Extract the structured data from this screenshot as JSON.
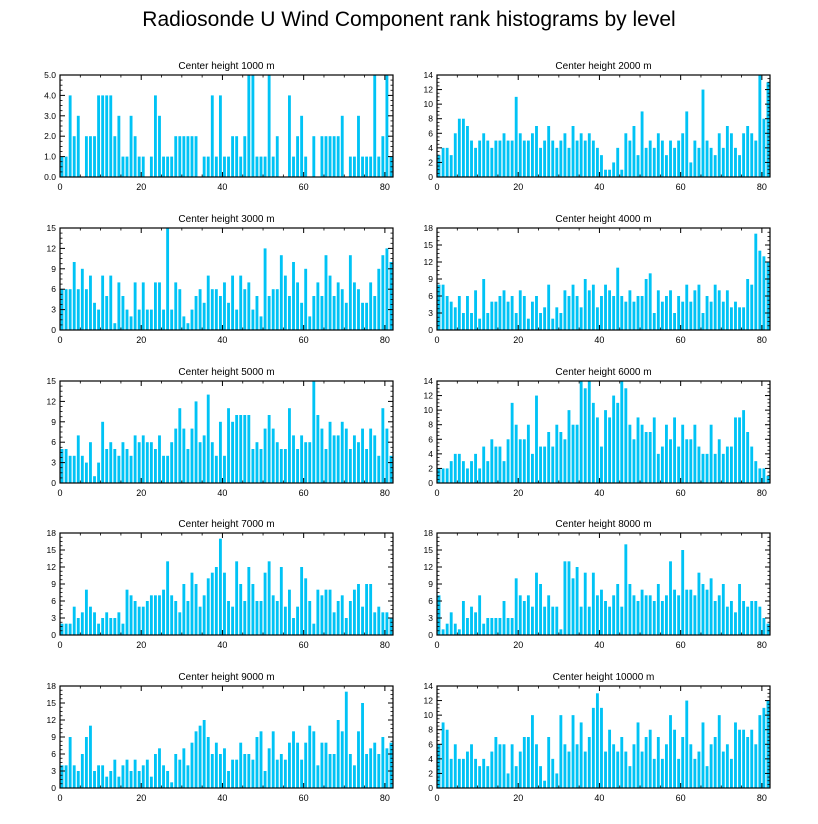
{
  "page_title": "Radiosonde U Wind Component rank histograms by level",
  "colors": {
    "bar": "#00c3f5",
    "axis": "#000000",
    "background": "#ffffff"
  },
  "chart_data": [
    {
      "type": "bar",
      "title": "Center height 1000 m",
      "xlim": [
        0,
        82
      ],
      "ylim": [
        0,
        5
      ],
      "xticks": [
        0,
        20,
        40,
        60,
        80
      ],
      "yticks": [
        0,
        1,
        2,
        3,
        4,
        5
      ],
      "ytick_labels": [
        "0.0",
        "1.0",
        "2.0",
        "3.0",
        "4.0",
        "5.0"
      ],
      "values": [
        1,
        1,
        4,
        2,
        3,
        0,
        2,
        2,
        2,
        4,
        4,
        4,
        4,
        2,
        3,
        1,
        1,
        3,
        2,
        1,
        1,
        0,
        1,
        4,
        3,
        1,
        1,
        1,
        2,
        2,
        2,
        2,
        2,
        2,
        0,
        1,
        1,
        4,
        1,
        4,
        1,
        1,
        2,
        2,
        1,
        2,
        5,
        5,
        1,
        1,
        1,
        5,
        1,
        2,
        0,
        0,
        4,
        1,
        2,
        3,
        1,
        0,
        2,
        0,
        2,
        2,
        2,
        2,
        2,
        3,
        0,
        1,
        1,
        3,
        1,
        1,
        1,
        5,
        1,
        2,
        5,
        1
      ]
    },
    {
      "type": "bar",
      "title": "Center height 2000 m",
      "xlim": [
        0,
        82
      ],
      "ylim": [
        0,
        14
      ],
      "xticks": [
        0,
        20,
        40,
        60,
        80
      ],
      "yticks": [
        0,
        2,
        4,
        6,
        8,
        10,
        12,
        14
      ],
      "ytick_labels": [
        "0",
        "2",
        "4",
        "6",
        "8",
        "10",
        "12",
        "14"
      ],
      "values": [
        3,
        4,
        4,
        3,
        6,
        8,
        8,
        7,
        5,
        4,
        5,
        6,
        5,
        4,
        5,
        5,
        6,
        5,
        5,
        11,
        6,
        5,
        5,
        6,
        7,
        4,
        5,
        7,
        5,
        4,
        5,
        6,
        4,
        7,
        5,
        6,
        5,
        6,
        5,
        4,
        3,
        1,
        1,
        2,
        4,
        1,
        6,
        5,
        7,
        3,
        9,
        4,
        5,
        4,
        6,
        5,
        3,
        5,
        4,
        5,
        6,
        9,
        2,
        5,
        4,
        12,
        5,
        4,
        3,
        6,
        4,
        7,
        6,
        4,
        3,
        6,
        7,
        6,
        5,
        14,
        8,
        13
      ]
    },
    {
      "type": "bar",
      "title": "Center height 3000 m",
      "xlim": [
        0,
        82
      ],
      "ylim": [
        0,
        15
      ],
      "xticks": [
        0,
        20,
        40,
        60,
        80
      ],
      "yticks": [
        0,
        3,
        6,
        9,
        12,
        15
      ],
      "ytick_labels": [
        "0",
        "3",
        "6",
        "9",
        "12",
        "15"
      ],
      "values": [
        6,
        6,
        6,
        10,
        6,
        9,
        6,
        8,
        4,
        3,
        8,
        5,
        8,
        1,
        7,
        5,
        3,
        2,
        7,
        3,
        7,
        3,
        3,
        7,
        7,
        3,
        15,
        3,
        7,
        6,
        2,
        1,
        3,
        5,
        6,
        4,
        8,
        6,
        6,
        5,
        7,
        4,
        8,
        3,
        8,
        6,
        7,
        3,
        5,
        2,
        12,
        5,
        6,
        6,
        11,
        8,
        5,
        10,
        7,
        4,
        9,
        2,
        5,
        7,
        5,
        11,
        8,
        5,
        7,
        6,
        4,
        11,
        7,
        6,
        4,
        4,
        7,
        5,
        9,
        11,
        12,
        10
      ]
    },
    {
      "type": "bar",
      "title": "Center height 4000 m",
      "xlim": [
        0,
        82
      ],
      "ylim": [
        0,
        18
      ],
      "xticks": [
        0,
        20,
        40,
        60,
        80
      ],
      "yticks": [
        0,
        3,
        6,
        9,
        12,
        15,
        18
      ],
      "ytick_labels": [
        "0",
        "3",
        "6",
        "9",
        "12",
        "15",
        "18"
      ],
      "values": [
        8,
        8,
        6,
        5,
        4,
        6,
        3,
        6,
        3,
        7,
        2,
        9,
        3,
        5,
        5,
        6,
        7,
        5,
        6,
        3,
        7,
        6,
        2,
        5,
        6,
        3,
        4,
        8,
        2,
        4,
        3,
        7,
        6,
        8,
        6,
        4,
        9,
        7,
        8,
        4,
        6,
        8,
        7,
        6,
        11,
        6,
        5,
        7,
        5,
        6,
        6,
        9,
        10,
        3,
        7,
        5,
        6,
        7,
        3,
        6,
        5,
        8,
        5,
        7,
        8,
        3,
        6,
        5,
        8,
        7,
        5,
        7,
        4,
        5,
        4,
        4,
        9,
        8,
        17,
        14,
        13,
        12
      ]
    },
    {
      "type": "bar",
      "title": "Center height 5000 m",
      "xlim": [
        0,
        82
      ],
      "ylim": [
        0,
        15
      ],
      "xticks": [
        0,
        20,
        40,
        60,
        80
      ],
      "yticks": [
        0,
        3,
        6,
        9,
        12,
        15
      ],
      "ytick_labels": [
        "0",
        "3",
        "6",
        "9",
        "12",
        "15"
      ],
      "values": [
        5,
        5,
        4,
        4,
        7,
        4,
        3,
        6,
        1,
        3,
        9,
        5,
        6,
        5,
        4,
        6,
        5,
        4,
        7,
        6,
        7,
        6,
        6,
        5,
        7,
        4,
        4,
        6,
        8,
        11,
        8,
        5,
        8,
        12,
        6,
        7,
        13,
        6,
        4,
        9,
        4,
        11,
        9,
        10,
        10,
        10,
        10,
        5,
        6,
        5,
        8,
        10,
        8,
        6,
        5,
        5,
        11,
        7,
        5,
        7,
        6,
        6,
        15,
        10,
        8,
        5,
        9,
        7,
        7,
        9,
        8,
        5,
        7,
        6,
        8,
        5,
        8,
        7,
        4,
        11,
        8,
        4
      ]
    },
    {
      "type": "bar",
      "title": "Center height 6000 m",
      "xlim": [
        0,
        82
      ],
      "ylim": [
        0,
        14
      ],
      "xticks": [
        0,
        20,
        40,
        60,
        80
      ],
      "yticks": [
        0,
        2,
        4,
        6,
        8,
        10,
        12,
        14
      ],
      "ytick_labels": [
        "0",
        "2",
        "4",
        "6",
        "8",
        "10",
        "12",
        "14"
      ],
      "values": [
        2,
        2,
        2,
        3,
        4,
        4,
        3,
        2,
        3,
        4,
        2,
        5,
        3,
        6,
        5,
        5,
        3,
        6,
        11,
        8,
        6,
        6,
        8,
        4,
        12,
        5,
        5,
        7,
        5,
        8,
        7,
        6,
        10,
        8,
        8,
        14,
        13,
        14,
        11,
        9,
        5,
        10,
        9,
        12,
        11,
        14,
        13,
        8,
        6,
        9,
        8,
        7,
        7,
        9,
        4,
        5,
        8,
        6,
        9,
        5,
        8,
        6,
        6,
        8,
        5,
        4,
        4,
        8,
        4,
        6,
        4,
        5,
        5,
        9,
        9,
        10,
        7,
        5,
        3,
        2,
        2,
        1
      ]
    },
    {
      "type": "bar",
      "title": "Center height 7000 m",
      "xlim": [
        0,
        82
      ],
      "ylim": [
        0,
        18
      ],
      "xticks": [
        0,
        20,
        40,
        60,
        80
      ],
      "yticks": [
        0,
        3,
        6,
        9,
        12,
        15,
        18
      ],
      "ytick_labels": [
        "0",
        "3",
        "6",
        "9",
        "12",
        "15",
        "18"
      ],
      "values": [
        2,
        2,
        2,
        5,
        3,
        4,
        8,
        5,
        4,
        2,
        3,
        4,
        3,
        3,
        4,
        2,
        8,
        7,
        6,
        5,
        5,
        6,
        7,
        7,
        7,
        8,
        13,
        7,
        6,
        4,
        9,
        6,
        11,
        9,
        5,
        7,
        10,
        11,
        12,
        17,
        11,
        6,
        5,
        13,
        9,
        6,
        12,
        9,
        6,
        6,
        11,
        13,
        7,
        6,
        12,
        5,
        8,
        3,
        5,
        12,
        10,
        6,
        2,
        8,
        7,
        8,
        8,
        4,
        6,
        7,
        3,
        6,
        8,
        9,
        5,
        9,
        9,
        4,
        5,
        4,
        4,
        3
      ]
    },
    {
      "type": "bar",
      "title": "Center height 8000 m",
      "xlim": [
        0,
        82
      ],
      "ylim": [
        0,
        18
      ],
      "xticks": [
        0,
        20,
        40,
        60,
        80
      ],
      "yticks": [
        0,
        3,
        6,
        9,
        12,
        15,
        18
      ],
      "ytick_labels": [
        "0",
        "3",
        "6",
        "9",
        "12",
        "15",
        "18"
      ],
      "values": [
        7,
        1,
        2,
        4,
        2,
        1,
        6,
        3,
        5,
        4,
        7,
        2,
        3,
        3,
        3,
        3,
        6,
        3,
        3,
        10,
        7,
        6,
        7,
        5,
        11,
        9,
        5,
        7,
        5,
        5,
        1,
        13,
        13,
        10,
        12,
        5,
        11,
        5,
        11,
        7,
        8,
        6,
        5,
        7,
        9,
        5,
        16,
        9,
        7,
        6,
        8,
        7,
        7,
        6,
        9,
        6,
        7,
        13,
        8,
        7,
        15,
        8,
        8,
        7,
        11,
        9,
        8,
        10,
        6,
        7,
        9,
        5,
        6,
        4,
        9,
        6,
        5,
        6,
        6,
        5,
        3,
        2
      ]
    },
    {
      "type": "bar",
      "title": "Center height 9000 m",
      "xlim": [
        0,
        82
      ],
      "ylim": [
        0,
        18
      ],
      "xticks": [
        0,
        20,
        40,
        60,
        80
      ],
      "yticks": [
        0,
        3,
        6,
        9,
        12,
        15,
        18
      ],
      "ytick_labels": [
        "0",
        "3",
        "6",
        "9",
        "12",
        "15",
        "18"
      ],
      "values": [
        4,
        4,
        9,
        4,
        3,
        6,
        9,
        11,
        3,
        4,
        4,
        2,
        3,
        5,
        2,
        4,
        5,
        3,
        5,
        3,
        4,
        5,
        2,
        6,
        7,
        4,
        3,
        1,
        6,
        5,
        7,
        4,
        8,
        10,
        11,
        12,
        9,
        6,
        8,
        6,
        7,
        3,
        5,
        5,
        8,
        6,
        6,
        5,
        9,
        10,
        3,
        7,
        10,
        5,
        6,
        5,
        8,
        10,
        8,
        5,
        8,
        11,
        10,
        4,
        8,
        8,
        6,
        6,
        12,
        10,
        17,
        6,
        4,
        10,
        15,
        6,
        7,
        8,
        6,
        9,
        7,
        8
      ]
    },
    {
      "type": "bar",
      "title": "Center height 10000 m",
      "xlim": [
        0,
        82
      ],
      "ylim": [
        0,
        14
      ],
      "xticks": [
        0,
        20,
        40,
        60,
        80
      ],
      "yticks": [
        0,
        2,
        4,
        6,
        8,
        10,
        12,
        14
      ],
      "ytick_labels": [
        "0",
        "2",
        "4",
        "6",
        "8",
        "10",
        "12",
        "14"
      ],
      "values": [
        6,
        9,
        8,
        4,
        6,
        4,
        4,
        5,
        6,
        4,
        3,
        4,
        3,
        5,
        7,
        6,
        6,
        2,
        6,
        3,
        5,
        7,
        7,
        10,
        6,
        3,
        1,
        7,
        4,
        2,
        10,
        6,
        5,
        10,
        6,
        9,
        5,
        7,
        11,
        13,
        11,
        5,
        8,
        6,
        5,
        7,
        5,
        3,
        6,
        9,
        5,
        7,
        8,
        4,
        7,
        4,
        6,
        10,
        8,
        4,
        7,
        12,
        6,
        4,
        5,
        9,
        3,
        6,
        7,
        10,
        5,
        6,
        4,
        9,
        8,
        8,
        7,
        8,
        6,
        10,
        11,
        12
      ]
    }
  ]
}
